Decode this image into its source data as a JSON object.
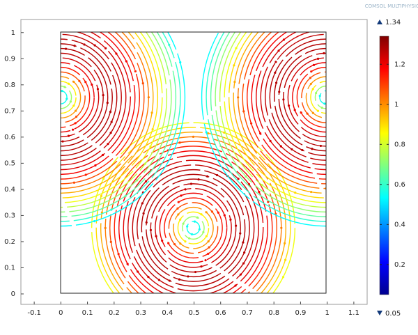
{
  "chart_data": {
    "type": "streamline",
    "watermark": "COMSOL MULTIPHYSICS",
    "xlim": [
      -0.15,
      1.15
    ],
    "xticks": [
      -0.1,
      0,
      0.1,
      0.2,
      0.3,
      0.4,
      0.5,
      0.6,
      0.7,
      0.8,
      0.9,
      1,
      1.1
    ],
    "ylim": [
      -0.04,
      1.05
    ],
    "yticks": [
      0,
      0.1,
      0.2,
      0.3,
      0.4,
      0.5,
      0.6,
      0.7,
      0.8,
      0.9,
      1
    ],
    "colorbar": {
      "colormap": "jet",
      "lim": [
        0.05,
        1.34
      ],
      "ticks": [
        0.2,
        0.4,
        0.6,
        0.8,
        1,
        1.2
      ]
    }
  }
}
